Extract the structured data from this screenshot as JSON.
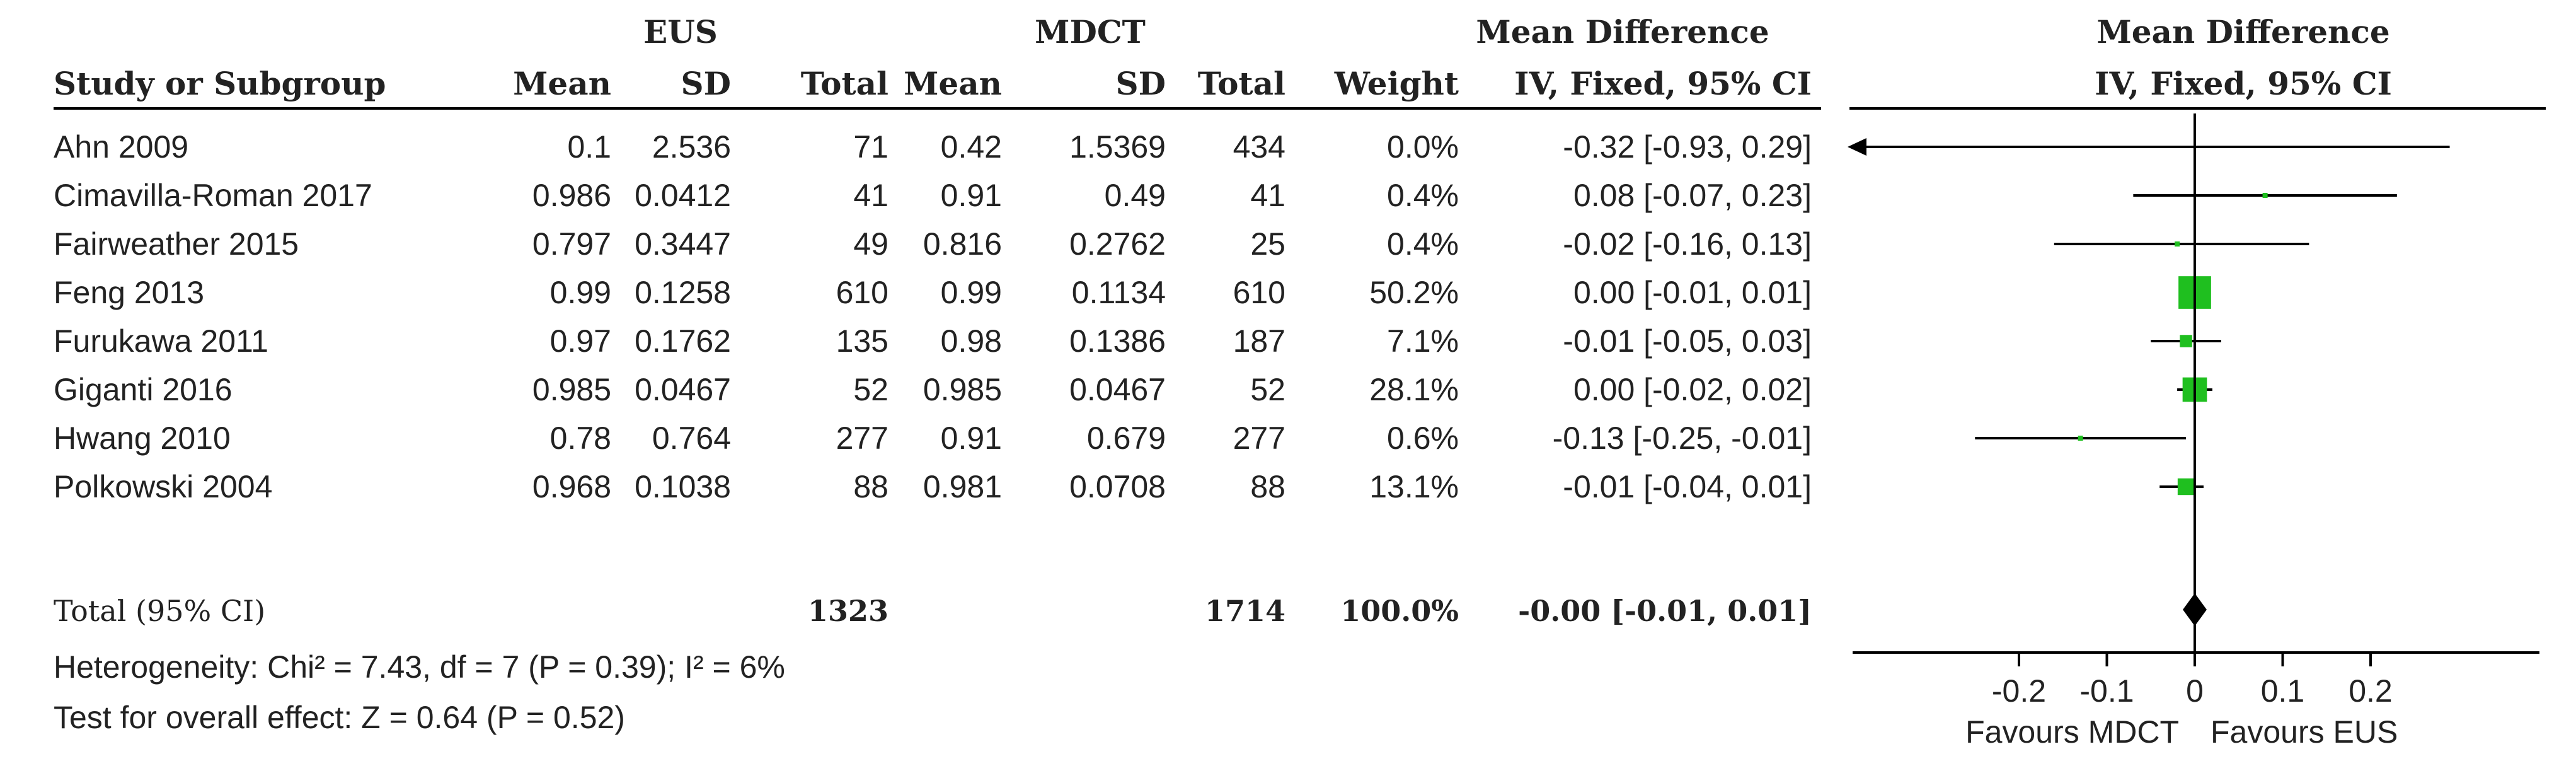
{
  "chart_data": {
    "type": "forest",
    "groups": {
      "experimental": "EUS",
      "control": "MDCT"
    },
    "header": {
      "study_col": "Study or Subgroup",
      "mean": "Mean",
      "sd": "SD",
      "total": "Total",
      "weight": "Weight",
      "effect_title": "Mean Difference",
      "effect_method": "IV, Fixed, 95% CI",
      "plot_title": "Mean Difference",
      "plot_method": "IV, Fixed, 95% CI"
    },
    "studies": [
      {
        "name": "Ahn 2009",
        "e_mean": "0.1",
        "e_sd": "2.536",
        "e_total": "71",
        "c_mean": "0.42",
        "c_sd": "1.5369",
        "c_total": "434",
        "weight": "0.0%",
        "ci_text": "-0.32 [-0.93, 0.29]",
        "md": -0.32,
        "lo": -0.93,
        "hi": 0.29,
        "w": 0.0
      },
      {
        "name": "Cimavilla-Roman 2017",
        "e_mean": "0.986",
        "e_sd": "0.0412",
        "e_total": "41",
        "c_mean": "0.91",
        "c_sd": "0.49",
        "c_total": "41",
        "weight": "0.4%",
        "ci_text": "0.08 [-0.07, 0.23]",
        "md": 0.08,
        "lo": -0.07,
        "hi": 0.23,
        "w": 0.4
      },
      {
        "name": "Fairweather 2015",
        "e_mean": "0.797",
        "e_sd": "0.3447",
        "e_total": "49",
        "c_mean": "0.816",
        "c_sd": "0.2762",
        "c_total": "25",
        "weight": "0.4%",
        "ci_text": "-0.02 [-0.16, 0.13]",
        "md": -0.02,
        "lo": -0.16,
        "hi": 0.13,
        "w": 0.4
      },
      {
        "name": "Feng 2013",
        "e_mean": "0.99",
        "e_sd": "0.1258",
        "e_total": "610",
        "c_mean": "0.99",
        "c_sd": "0.1134",
        "c_total": "610",
        "weight": "50.2%",
        "ci_text": "0.00 [-0.01, 0.01]",
        "md": 0.0,
        "lo": -0.01,
        "hi": 0.01,
        "w": 50.2
      },
      {
        "name": "Furukawa 2011",
        "e_mean": "0.97",
        "e_sd": "0.1762",
        "e_total": "135",
        "c_mean": "0.98",
        "c_sd": "0.1386",
        "c_total": "187",
        "weight": "7.1%",
        "ci_text": "-0.01 [-0.05, 0.03]",
        "md": -0.01,
        "lo": -0.05,
        "hi": 0.03,
        "w": 7.1
      },
      {
        "name": "Giganti 2016",
        "e_mean": "0.985",
        "e_sd": "0.0467",
        "e_total": "52",
        "c_mean": "0.985",
        "c_sd": "0.0467",
        "c_total": "52",
        "weight": "28.1%",
        "ci_text": "0.00 [-0.02, 0.02]",
        "md": 0.0,
        "lo": -0.02,
        "hi": 0.02,
        "w": 28.1
      },
      {
        "name": "Hwang 2010",
        "e_mean": "0.78",
        "e_sd": "0.764",
        "e_total": "277",
        "c_mean": "0.91",
        "c_sd": "0.679",
        "c_total": "277",
        "weight": "0.6%",
        "ci_text": "-0.13 [-0.25, -0.01]",
        "md": -0.13,
        "lo": -0.25,
        "hi": -0.01,
        "w": 0.6
      },
      {
        "name": "Polkowski 2004",
        "e_mean": "0.968",
        "e_sd": "0.1038",
        "e_total": "88",
        "c_mean": "0.981",
        "c_sd": "0.0708",
        "c_total": "88",
        "weight": "13.1%",
        "ci_text": "-0.01 [-0.04, 0.01]",
        "md": -0.01,
        "lo": -0.04,
        "hi": 0.01,
        "w": 13.1
      }
    ],
    "total": {
      "label": "Total (95% CI)",
      "e_total": "1323",
      "c_total": "1714",
      "weight": "100.0%",
      "ci_text": "-0.00 [-0.01, 0.01]",
      "md": 0.0,
      "lo": -0.01,
      "hi": 0.01
    },
    "heterogeneity": "Heterogeneity: Chi² = 7.43, df = 7 (P = 0.39); I² = 6%",
    "overall_effect": "Test for overall effect: Z = 0.64 (P = 0.52)",
    "x_axis": {
      "ticks": [
        -0.2,
        -0.1,
        0,
        0.1,
        0.2
      ],
      "tick_labels": [
        "-0.2",
        "-0.1",
        "0",
        "0.1",
        "0.2"
      ],
      "range": [
        -0.27,
        0.27
      ],
      "favours_left": "Favours MDCT",
      "favours_right": "Favours EUS"
    },
    "colors": {
      "marker": "#1fbf1f",
      "diamond": "#000000",
      "line": "#000000"
    }
  }
}
